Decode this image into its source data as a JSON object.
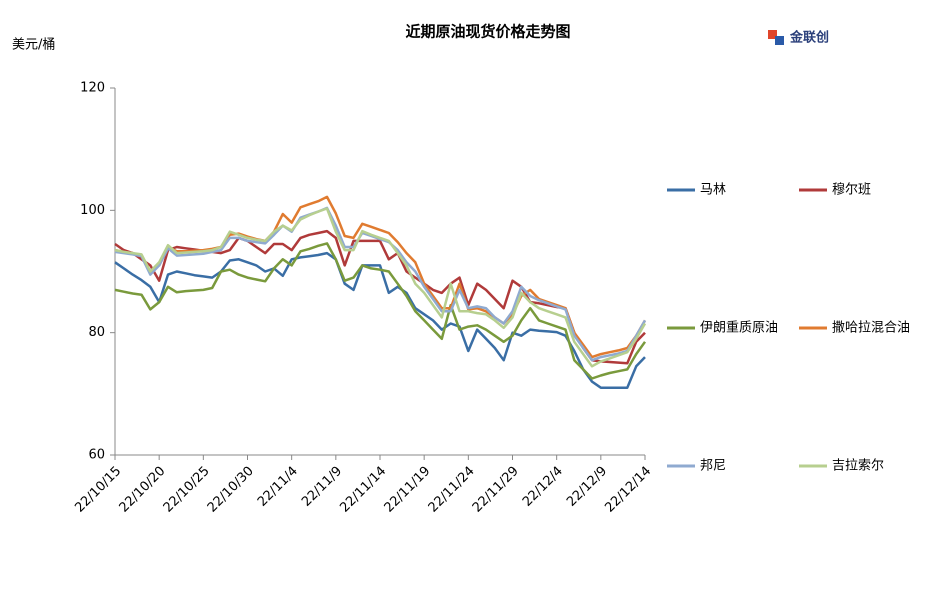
{
  "chart_data": {
    "type": "line",
    "title": "近期原油现货价格走势图",
    "y_label": "美元/桶",
    "logo": "金联创",
    "categories": [
      "22/10/15",
      null,
      null,
      null,
      null,
      "22/10/20",
      null,
      null,
      null,
      null,
      "22/10/25",
      null,
      null,
      null,
      null,
      "22/10/30",
      null,
      null,
      null,
      null,
      "22/11/4",
      null,
      null,
      null,
      null,
      "22/11/9",
      null,
      null,
      null,
      null,
      "22/11/14",
      null,
      null,
      null,
      null,
      "22/11/19",
      null,
      null,
      null,
      null,
      "22/11/24",
      null,
      null,
      null,
      null,
      "22/11/29",
      null,
      null,
      null,
      null,
      "22/12/4",
      null,
      null,
      null,
      null,
      "22/12/9",
      null,
      null,
      null,
      null,
      "22/12/14"
    ],
    "ylim": [
      60,
      120
    ],
    "yticks": [
      60,
      80,
      100,
      120
    ],
    "grid": false,
    "series": [
      {
        "name": "马林",
        "color": "#3a6ea5",
        "values": [
          91.5,
          90.5,
          89.5,
          88.6,
          87.5,
          85,
          89.5,
          90,
          89.7,
          89.4,
          89.2,
          89,
          90,
          91.8,
          92,
          91.5,
          91,
          90,
          90.5,
          89.3,
          92,
          92.3,
          92.5,
          92.7,
          93,
          92,
          88,
          87,
          91,
          91,
          91,
          86.5,
          87.5,
          86.5,
          84,
          83,
          82,
          80.5,
          81.5,
          81,
          77,
          80.5,
          79,
          77.5,
          75.5,
          80,
          79.5,
          80.5,
          80.3,
          80.2,
          80.1,
          79.5,
          77,
          74,
          72,
          71,
          71,
          71,
          71,
          74.5,
          76
        ]
      },
      {
        "name": "穆尔班",
        "color": "#b03a3a",
        "values": [
          94.5,
          93.5,
          93,
          92,
          91,
          88.5,
          93.5,
          94,
          93.8,
          93.6,
          93.4,
          93.2,
          93,
          93.5,
          95.5,
          95,
          94,
          93,
          94.5,
          94.5,
          93.5,
          95.5,
          96,
          96.3,
          96.6,
          95.5,
          91,
          95,
          95,
          95,
          95,
          92,
          93,
          90,
          89,
          88,
          87,
          86.5,
          88,
          89,
          84.5,
          88,
          87,
          85.5,
          84,
          88.5,
          87.5,
          85,
          84.8,
          84.5,
          84.2,
          84,
          80,
          77.5,
          75.5,
          75.3,
          75.2,
          75.1,
          75,
          78.5,
          80
        ]
      },
      {
        "name": "伊朗重质原油",
        "color": "#7a9a3c",
        "values": [
          87,
          86.7,
          86.4,
          86.2,
          83.8,
          85,
          87.5,
          86.6,
          86.8,
          86.9,
          87,
          87.3,
          90,
          90.3,
          89.5,
          89,
          88.7,
          88.4,
          90.5,
          92,
          91,
          93.3,
          93.7,
          94.2,
          94.6,
          92,
          88.5,
          89,
          91,
          90.5,
          90.3,
          90,
          88,
          86,
          83.5,
          82,
          80.5,
          79,
          84.5,
          80.5,
          81,
          81.2,
          80.5,
          79.5,
          78.5,
          79.5,
          82,
          84,
          82,
          81.5,
          81,
          80.5,
          75.5,
          74,
          72.5,
          73,
          73.4,
          73.7,
          74,
          76.5,
          78.5
        ]
      },
      {
        "name": "撒哈拉混合油",
        "color": "#e07b30",
        "values": [
          93.5,
          93.2,
          93,
          92.5,
          90,
          91,
          94,
          93.3,
          93.3,
          93.4,
          93.5,
          93.7,
          94,
          96,
          96.2,
          95.7,
          95.3,
          95,
          96.5,
          99.4,
          98,
          100.5,
          101,
          101.5,
          102.2,
          99.5,
          95.8,
          95.5,
          97.8,
          97.3,
          96.8,
          96.3,
          94.8,
          93,
          91.5,
          88,
          86,
          84,
          84,
          88,
          83.8,
          84,
          83.5,
          82.5,
          81.5,
          83,
          86,
          87,
          85.5,
          85,
          84.5,
          84,
          80,
          78,
          76,
          76.5,
          76.8,
          77.1,
          77.5,
          79.5,
          82
        ]
      },
      {
        "name": "邦尼",
        "color": "#8faad0",
        "values": [
          93.2,
          93,
          92.8,
          92.5,
          89.5,
          91,
          93.8,
          92.6,
          92.7,
          92.8,
          92.9,
          93.2,
          93.5,
          95.5,
          95.5,
          95,
          94.8,
          94.6,
          96,
          97.5,
          96.5,
          98.8,
          99.3,
          99.8,
          100.4,
          97.5,
          94,
          94,
          96.3,
          95.8,
          95.3,
          94.8,
          93.5,
          91.5,
          90,
          87.5,
          85.5,
          83.5,
          83.5,
          87,
          84,
          84.3,
          84,
          82.5,
          81.5,
          83.5,
          87.5,
          86,
          85.3,
          84.8,
          84.3,
          83.8,
          79.5,
          77.5,
          75.5,
          76,
          76.3,
          76.6,
          77,
          79.5,
          82
        ]
      },
      {
        "name": "吉拉索尔",
        "color": "#b7cf8f",
        "values": [
          93.5,
          93.2,
          93,
          92.8,
          90,
          91.5,
          94.3,
          93,
          93.1,
          93.2,
          93.3,
          93.5,
          94,
          96.5,
          96,
          95.5,
          95.2,
          95,
          96.5,
          97.5,
          96.7,
          98.5,
          99.2,
          99.8,
          100.3,
          96.5,
          93.5,
          93.5,
          96.6,
          96,
          95.5,
          95,
          93,
          91,
          88,
          86.5,
          84.5,
          82.5,
          88,
          83.5,
          83.5,
          83.2,
          83,
          82,
          80.8,
          82.5,
          86.5,
          85,
          84,
          83.5,
          83,
          82.5,
          78.5,
          76.5,
          74.5,
          75.3,
          75.8,
          76.3,
          76.8,
          79,
          81.5
        ]
      }
    ]
  }
}
